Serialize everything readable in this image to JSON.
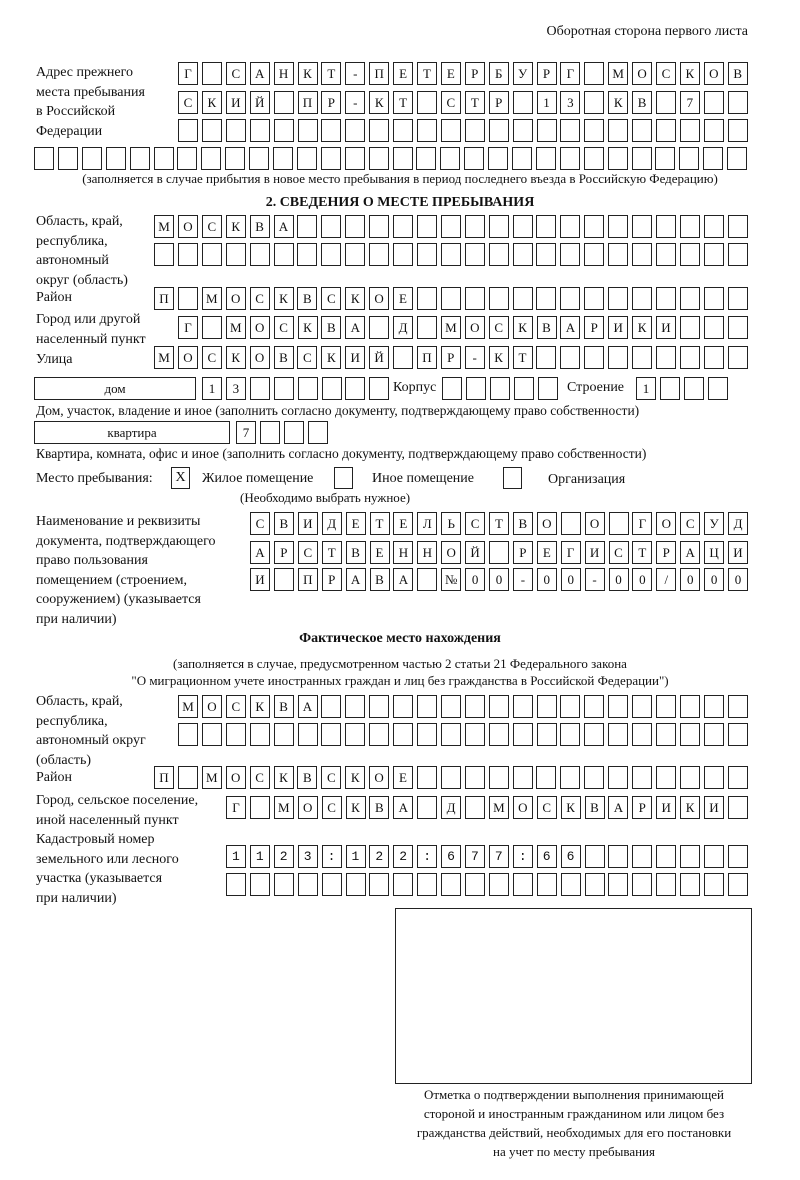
{
  "page_header": "Оборотная сторона первого листа",
  "prev_address": {
    "label": [
      "Адрес прежнего",
      "места пребывания",
      "в Российской",
      "Федерации"
    ],
    "rows": [
      "Г САНКТ-ПЕТЕРБУРГ МОСКОВ",
      "СКИЙ ПР-КТ СТР 13 КВ 7  ",
      "                        ",
      "                              "
    ],
    "note": "(заполняется в случае прибытия в новое место пребывания в период последнего въезда в Российскую Федерацию)"
  },
  "section2": {
    "title": "2. СВЕДЕНИЯ О МЕСТЕ ПРЕБЫВАНИЯ",
    "region_label": [
      "Область, край,",
      "республика,",
      "автономный",
      "округ (область)"
    ],
    "region_rows": [
      "МОСКВА                   ",
      "                         "
    ],
    "district_label": "Район",
    "district": "П МОСКВСКОЕ              ",
    "city_label": [
      "Город или другой",
      "населенный пункт"
    ],
    "city": "Г МОСКВА Д МОСКВАРИКИ   ",
    "street_label": "Улица",
    "street": "МОСКОВСКИЙ ПР-КТ         ",
    "house_type": "дом",
    "house": "13      ",
    "korpus_label": "Корпус",
    "korpus": "     ",
    "building_label": "Строение",
    "building": "1   ",
    "house_note": "Дом, участок, владение и иное (заполнить согласно документу, подтверждающему право собственности)",
    "flat_type": "квартира",
    "flat": "7   ",
    "flat_note": "Квартира, комната, офис и иное (заполнить согласно документу, подтверждающему право собственности)",
    "stay_label": "Место пребывания:",
    "stay_options": [
      {
        "label": "Жилое помещение",
        "checked": "X"
      },
      {
        "label": "Иное помещение",
        "checked": ""
      },
      {
        "label": "Организация",
        "checked": ""
      }
    ],
    "stay_note": "(Необходимо выбрать нужное)",
    "doc_label": [
      "Наименование и реквизиты",
      "документа, подтверждающего",
      "право пользования",
      "помещением (строением,",
      "сооружением) (указывается",
      "при наличии)"
    ],
    "doc_rows": [
      "СВИДЕТЕЛЬСТВО О ГОСУД",
      "АРСТВЕННОЙ РЕГИСТРАЦИ",
      "И ПРАВА №00-00-00/000"
    ]
  },
  "actual": {
    "title": "Фактическое место нахождения",
    "note": [
      "(заполняется в случае, предусмотренном частью 2 статьи 21 Федерального закона",
      "\"О миграционном учете иностранных граждан и лиц без гражданства в Российской Федерации\")"
    ],
    "region_label": [
      "Область, край,",
      "республика,",
      "автономный округ",
      "(область)"
    ],
    "region_rows": [
      "МОСКВА                  ",
      "                        "
    ],
    "district_label": "Район",
    "district": "П МОСКВСКОЕ              ",
    "city_label": [
      "Город, сельское поселение,",
      "иной населенный пункт"
    ],
    "city": "Г МОСКВА Д МОСКВАРИКИ ",
    "cadastre_label": [
      "Кадастровый номер",
      "земельного или лесного",
      "участка (указывается",
      "при наличии)"
    ],
    "cadastre_rows": [
      "1123:122:677:66       ",
      "                      "
    ]
  },
  "stamp_caption": [
    "Отметка о подтверждении выполнения принимающей",
    "стороной и иностранным гражданином или лицом без",
    "гражданства действий, необходимых для его постановки",
    "на учет по месту пребывания"
  ]
}
